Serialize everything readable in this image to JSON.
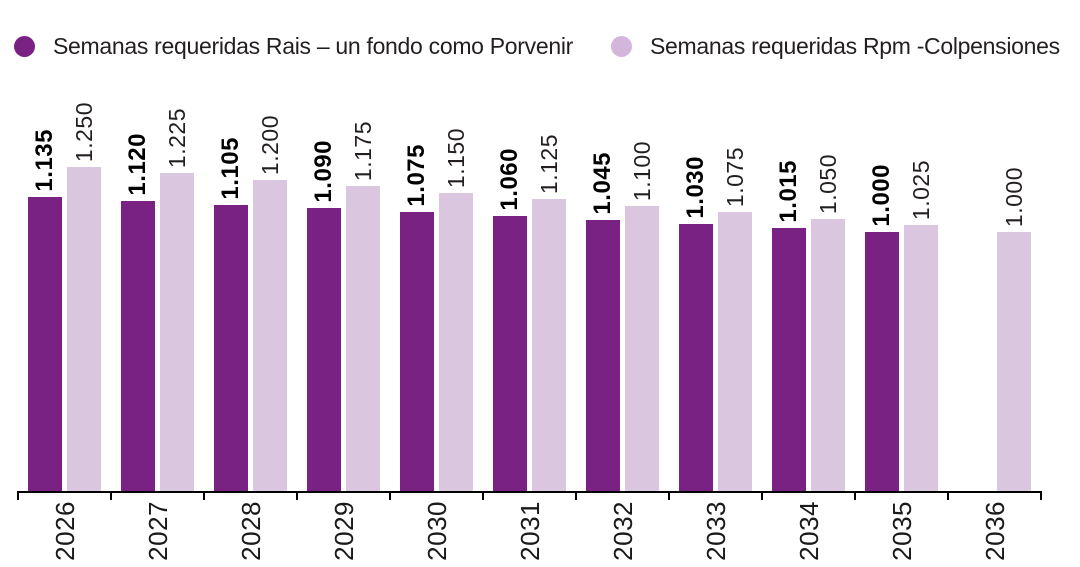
{
  "chart_data": {
    "type": "bar",
    "title": "",
    "xlabel": "",
    "ylabel": "",
    "grid": false,
    "legend_position": "top-left",
    "value_label_rotation": -90,
    "x_tick_rotation": -90,
    "ylim": [
      0,
      1250
    ],
    "categories": [
      "2026",
      "2027",
      "2028",
      "2029",
      "2030",
      "2031",
      "2032",
      "2033",
      "2034",
      "2035",
      "2036"
    ],
    "series": [
      {
        "name": "Semanas requeridas Rais – un fondo como Porvenir",
        "color": "#7A2283",
        "legend_dot_color": "#7A2283",
        "label_style": "bold",
        "values": [
          1135,
          1120,
          1105,
          1090,
          1075,
          1060,
          1045,
          1030,
          1015,
          1000,
          null
        ],
        "labels": [
          "1.135",
          "1.120",
          "1.105",
          "1.090",
          "1.075",
          "1.060",
          "1.045",
          "1.030",
          "1.015",
          "1.000",
          ""
        ]
      },
      {
        "name": "Semanas requeridas Rpm -Colpensiones",
        "color": "#DBC6E0",
        "legend_dot_color": "#D4B6DB",
        "label_style": "regular",
        "values": [
          1250,
          1225,
          1200,
          1175,
          1150,
          1125,
          1100,
          1075,
          1050,
          1025,
          1000
        ],
        "labels": [
          "1.250",
          "1.225",
          "1.200",
          "1.175",
          "1.150",
          "1.125",
          "1.100",
          "1.075",
          "1.050",
          "1.025",
          "1.000"
        ]
      }
    ],
    "axis_color": "#000000"
  }
}
